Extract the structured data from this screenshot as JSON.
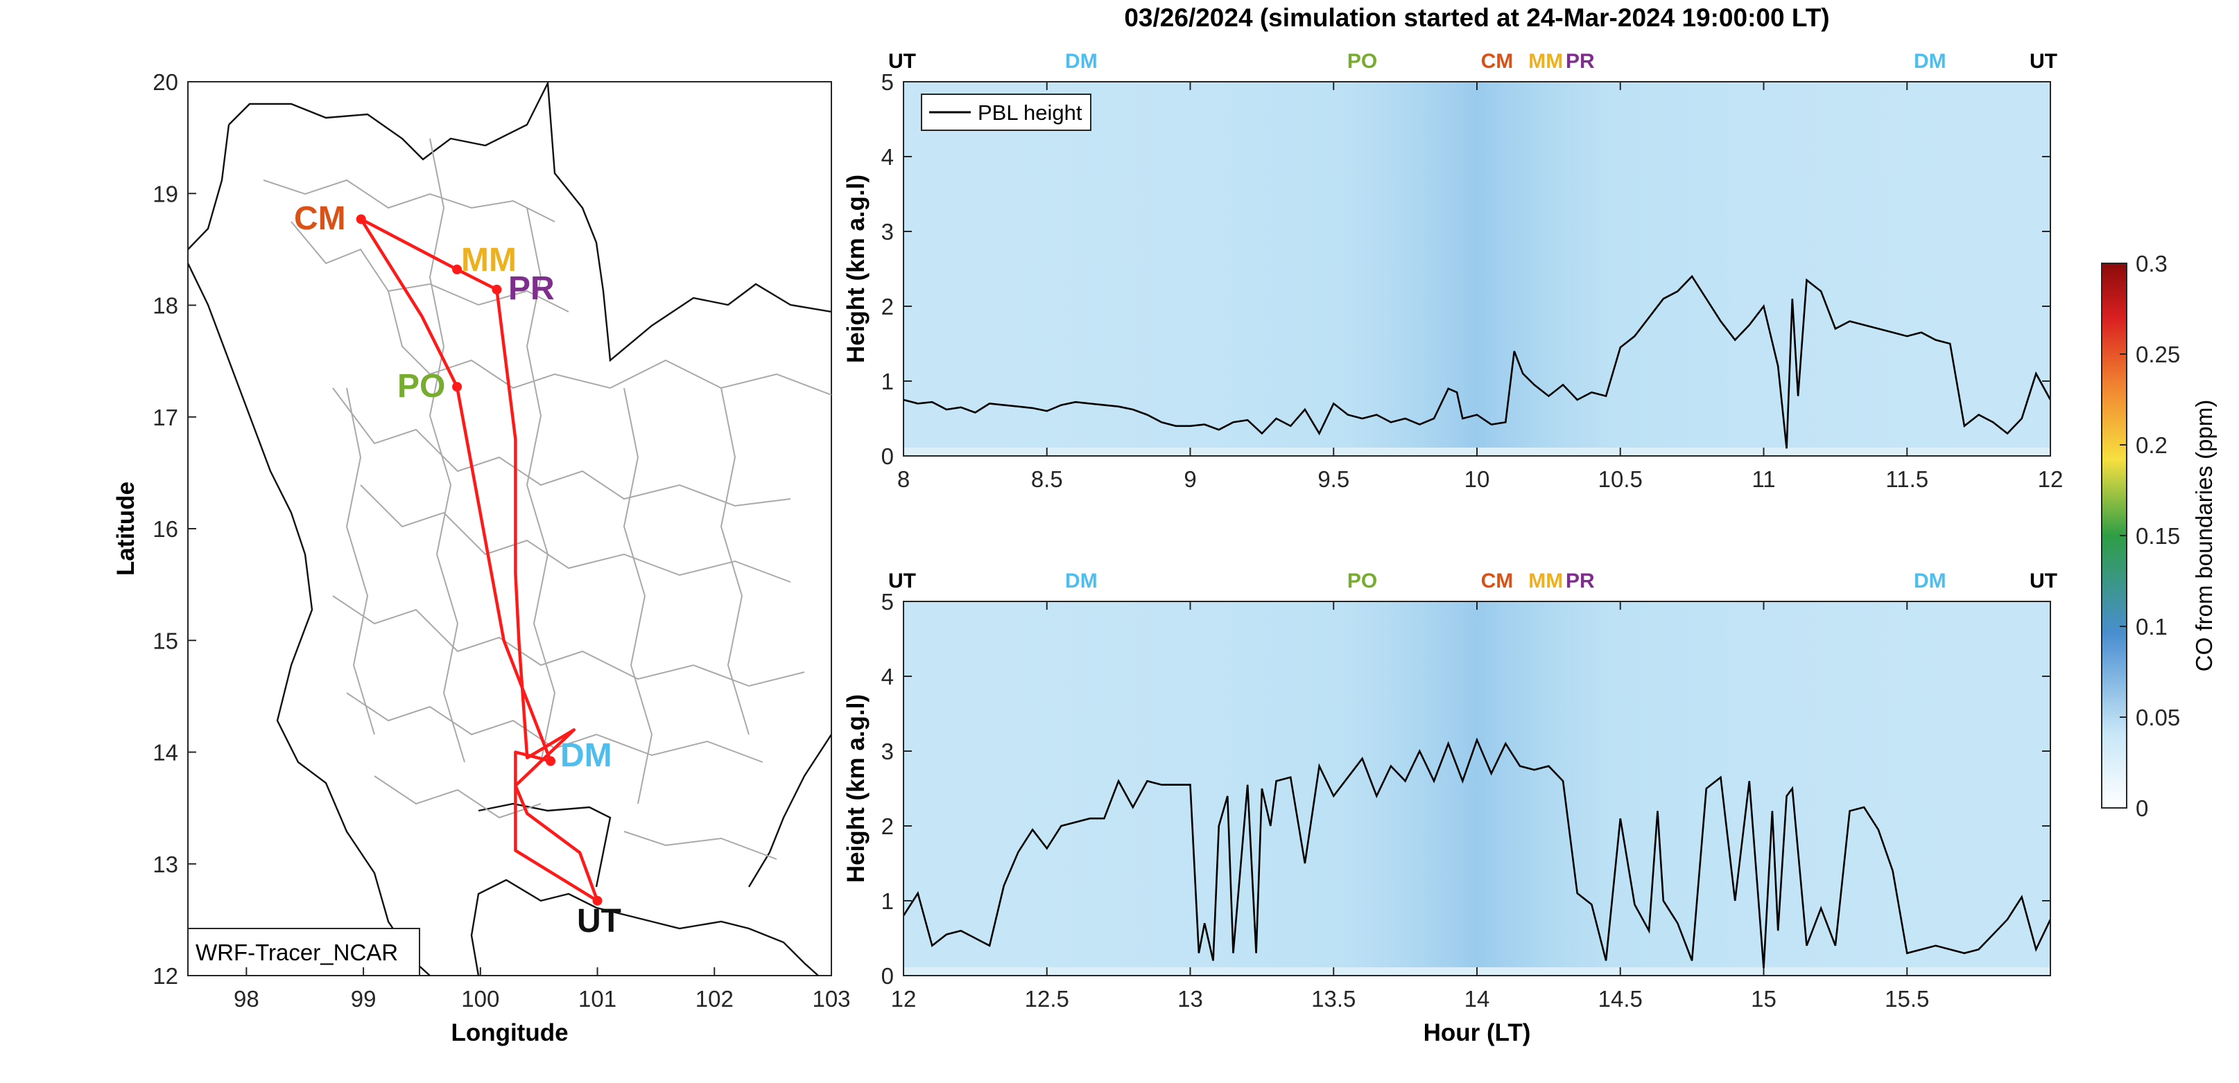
{
  "figure_title": "03/26/2024 (simulation started at 24-Mar-2024 19:00:00 LT)",
  "colors": {
    "route": "#ff1a1a",
    "PBL": "#000000",
    "CM": "#d95319",
    "MM": "#edb120",
    "PR": "#7e2f8e",
    "PO": "#77ac30",
    "DM": "#4dbeee",
    "UT": "#000000",
    "field_base": "#c6e6f7",
    "field_dark": "#9ccbeb"
  },
  "chart_data": [
    {
      "type": "map",
      "name": "route-map",
      "xlabel": "Longitude",
      "ylabel": "Latitude",
      "xlim": [
        97.5,
        103
      ],
      "ylim": [
        12,
        20
      ],
      "xticks": [
        98,
        99,
        100,
        101,
        102,
        103
      ],
      "yticks": [
        12,
        13,
        14,
        15,
        16,
        17,
        18,
        19,
        20
      ],
      "grid": false,
      "annotation": "WRF-Tracer_NCAR",
      "stations": [
        {
          "code": "CM",
          "lon": 98.98,
          "lat": 18.77
        },
        {
          "code": "MM",
          "lon": 99.8,
          "lat": 18.32
        },
        {
          "code": "PR",
          "lon": 100.14,
          "lat": 18.14
        },
        {
          "code": "PO",
          "lon": 99.8,
          "lat": 17.27
        },
        {
          "code": "DM",
          "lon": 100.6,
          "lat": 13.92
        },
        {
          "code": "UT",
          "lon": 101.0,
          "lat": 12.67
        }
      ],
      "route": [
        [
          98.98,
          18.77
        ],
        [
          99.8,
          18.32
        ],
        [
          100.14,
          18.14
        ],
        [
          100.3,
          16.8
        ],
        [
          100.3,
          15.6
        ],
        [
          100.33,
          14.98
        ],
        [
          100.4,
          13.95
        ],
        [
          100.8,
          14.2
        ],
        [
          100.3,
          13.7
        ],
        [
          100.4,
          13.45
        ],
        [
          100.85,
          13.1
        ],
        [
          101.0,
          12.67
        ],
        [
          100.3,
          13.12
        ],
        [
          100.3,
          14.0
        ],
        [
          100.6,
          13.92
        ],
        [
          100.2,
          15.0
        ],
        [
          99.8,
          17.27
        ],
        [
          99.5,
          17.9
        ],
        [
          98.98,
          18.77
        ]
      ]
    },
    {
      "type": "heatmap",
      "name": "upper-panel",
      "xlabel": "",
      "ylabel": "Height (km a.g.l)",
      "xlim": [
        8,
        12
      ],
      "ylim": [
        0,
        5
      ],
      "xticks": [
        8,
        8.5,
        9,
        9.5,
        10,
        10.5,
        11,
        11.5,
        12
      ],
      "yticks": [
        0,
        1,
        2,
        3,
        4,
        5
      ],
      "legend": {
        "entry": "PBL height",
        "position": "top-left"
      },
      "top_labels": [
        {
          "text": "UT",
          "x": 8.0
        },
        {
          "text": "DM",
          "x": 8.62
        },
        {
          "text": "PO",
          "x": 9.6
        },
        {
          "text": "CM",
          "x": 10.07
        },
        {
          "text": "MM",
          "x": 10.24
        },
        {
          "text": "PR",
          "x": 10.36
        },
        {
          "text": "DM",
          "x": 11.58
        },
        {
          "text": "UT",
          "x": 12.0
        }
      ],
      "series": [
        {
          "name": "PBL height",
          "x": [
            8.0,
            8.05,
            8.1,
            8.15,
            8.2,
            8.25,
            8.3,
            8.35,
            8.4,
            8.45,
            8.5,
            8.55,
            8.6,
            8.65,
            8.7,
            8.75,
            8.8,
            8.85,
            8.9,
            8.95,
            9.0,
            9.05,
            9.1,
            9.15,
            9.2,
            9.25,
            9.3,
            9.35,
            9.4,
            9.45,
            9.5,
            9.55,
            9.6,
            9.65,
            9.7,
            9.75,
            9.8,
            9.85,
            9.9,
            9.93,
            9.95,
            10.0,
            10.05,
            10.1,
            10.13,
            10.16,
            10.2,
            10.25,
            10.3,
            10.35,
            10.4,
            10.45,
            10.5,
            10.55,
            10.6,
            10.65,
            10.7,
            10.75,
            10.8,
            10.85,
            10.9,
            10.95,
            11.0,
            11.05,
            11.08,
            11.1,
            11.12,
            11.15,
            11.2,
            11.25,
            11.3,
            11.35,
            11.4,
            11.45,
            11.5,
            11.55,
            11.6,
            11.65,
            11.7,
            11.75,
            11.8,
            11.85,
            11.9,
            11.95,
            12.0
          ],
          "values": [
            0.75,
            0.7,
            0.72,
            0.62,
            0.65,
            0.58,
            0.7,
            0.68,
            0.66,
            0.64,
            0.6,
            0.68,
            0.72,
            0.7,
            0.68,
            0.66,
            0.62,
            0.55,
            0.45,
            0.4,
            0.4,
            0.42,
            0.35,
            0.45,
            0.48,
            0.3,
            0.5,
            0.4,
            0.62,
            0.3,
            0.7,
            0.55,
            0.5,
            0.55,
            0.45,
            0.5,
            0.42,
            0.5,
            0.9,
            0.85,
            0.5,
            0.55,
            0.42,
            0.45,
            1.4,
            1.1,
            0.95,
            0.8,
            0.95,
            0.75,
            0.85,
            0.8,
            1.45,
            1.6,
            1.85,
            2.1,
            2.2,
            2.4,
            2.1,
            1.8,
            1.55,
            1.75,
            2.0,
            1.2,
            0.1,
            2.1,
            0.8,
            2.35,
            2.2,
            1.7,
            1.8,
            1.75,
            1.7,
            1.65,
            1.6,
            1.65,
            1.55,
            1.5,
            0.4,
            0.55,
            0.45,
            0.3,
            0.5,
            1.1,
            0.75
          ]
        }
      ]
    },
    {
      "type": "heatmap",
      "name": "lower-panel",
      "xlabel": "Hour (LT)",
      "ylabel": "Height (km a.g.l)",
      "xlim": [
        12,
        16
      ],
      "ylim": [
        0,
        5
      ],
      "xticks": [
        12,
        12.5,
        13,
        13.5,
        14,
        14.5,
        15,
        15.5
      ],
      "yticks": [
        0,
        1,
        2,
        3,
        4,
        5
      ],
      "top_labels": [
        {
          "text": "UT",
          "x": 12.0
        },
        {
          "text": "DM",
          "x": 12.62
        },
        {
          "text": "PO",
          "x": 13.6
        },
        {
          "text": "CM",
          "x": 14.07
        },
        {
          "text": "MM",
          "x": 14.24
        },
        {
          "text": "PR",
          "x": 14.36
        },
        {
          "text": "DM",
          "x": 15.58
        },
        {
          "text": "UT",
          "x": 16.0
        }
      ],
      "series": [
        {
          "name": "PBL height",
          "x": [
            12.0,
            12.05,
            12.1,
            12.15,
            12.2,
            12.25,
            12.3,
            12.35,
            12.4,
            12.45,
            12.5,
            12.55,
            12.6,
            12.65,
            12.7,
            12.75,
            12.8,
            12.85,
            12.9,
            12.95,
            13.0,
            13.03,
            13.05,
            13.08,
            13.1,
            13.13,
            13.15,
            13.2,
            13.23,
            13.25,
            13.28,
            13.3,
            13.35,
            13.4,
            13.45,
            13.5,
            13.55,
            13.6,
            13.65,
            13.7,
            13.75,
            13.8,
            13.85,
            13.9,
            13.95,
            14.0,
            14.05,
            14.1,
            14.15,
            14.2,
            14.25,
            14.3,
            14.35,
            14.4,
            14.45,
            14.5,
            14.55,
            14.6,
            14.63,
            14.65,
            14.7,
            14.75,
            14.8,
            14.85,
            14.9,
            14.95,
            15.0,
            15.03,
            15.05,
            15.08,
            15.1,
            15.15,
            15.2,
            15.25,
            15.3,
            15.35,
            15.4,
            15.45,
            15.5,
            15.55,
            15.6,
            15.65,
            15.7,
            15.75,
            15.8,
            15.85,
            15.9,
            15.95,
            16.0
          ],
          "values": [
            0.8,
            1.1,
            0.4,
            0.55,
            0.6,
            0.5,
            0.4,
            1.2,
            1.65,
            1.95,
            1.7,
            2.0,
            2.05,
            2.1,
            2.1,
            2.6,
            2.25,
            2.6,
            2.55,
            2.55,
            2.55,
            0.3,
            0.7,
            0.2,
            2.0,
            2.4,
            0.3,
            2.55,
            0.3,
            2.5,
            2.0,
            2.6,
            2.65,
            1.5,
            2.8,
            2.4,
            2.65,
            2.9,
            2.4,
            2.8,
            2.6,
            3.0,
            2.6,
            3.1,
            2.6,
            3.15,
            2.7,
            3.1,
            2.8,
            2.75,
            2.8,
            2.6,
            1.1,
            0.95,
            0.2,
            2.1,
            0.95,
            0.6,
            2.2,
            1.0,
            0.7,
            0.2,
            2.5,
            2.65,
            1.0,
            2.6,
            0.1,
            2.2,
            0.6,
            2.4,
            2.5,
            0.4,
            0.9,
            0.4,
            2.2,
            2.25,
            1.95,
            1.4,
            0.3,
            0.35,
            0.4,
            0.35,
            0.3,
            0.35,
            0.55,
            0.75,
            1.05,
            0.35,
            0.75
          ]
        }
      ]
    }
  ],
  "colorbar": {
    "label": "CO from boundaries (ppm)",
    "range": [
      0,
      0.3
    ],
    "ticks": [
      "0",
      "0.05",
      "0.1",
      "0.15",
      "0.2",
      "0.25",
      "0.3"
    ],
    "stops": [
      "#ffffff",
      "#c6e6f7",
      "#4a8ed0",
      "#2e9e45",
      "#f7e040",
      "#f08030",
      "#d92020",
      "#8b0a0a"
    ]
  }
}
